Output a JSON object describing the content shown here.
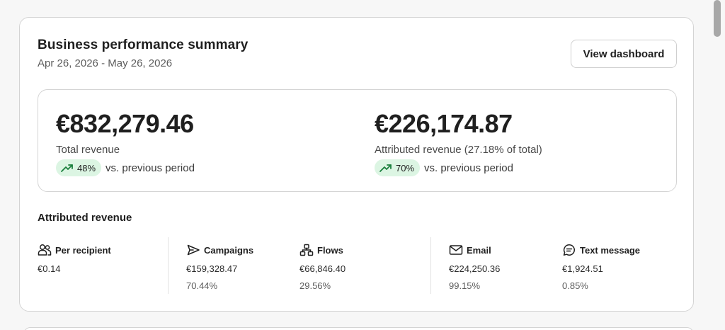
{
  "header": {
    "title": "Business performance summary",
    "date_range": "Apr 26, 2026 - May 26, 2026",
    "view_button": "View dashboard"
  },
  "kpis": [
    {
      "value": "€832,279.46",
      "label": "Total revenue",
      "change": "48%",
      "change_suffix": "vs. previous period"
    },
    {
      "value": "€226,174.87",
      "label": "Attributed revenue (27.18% of total)",
      "change": "70%",
      "change_suffix": "vs. previous period"
    }
  ],
  "attributed": {
    "label": "Attributed revenue",
    "metrics": [
      {
        "name": "Per recipient",
        "icon": "people-icon",
        "value": "€0.14",
        "pct": ""
      },
      {
        "name": "Campaigns",
        "icon": "send-icon",
        "value": "€159,328.47",
        "pct": "70.44%"
      },
      {
        "name": "Flows",
        "icon": "flows-icon",
        "value": "€66,846.40",
        "pct": "29.56%"
      },
      {
        "name": "Email",
        "icon": "email-icon",
        "value": "€224,250.36",
        "pct": "99.15%"
      },
      {
        "name": "Text message",
        "icon": "sms-icon",
        "value": "€1,924.51",
        "pct": "0.85%"
      }
    ]
  },
  "colors": {
    "positive_bg": "#dcf5e3",
    "positive_icon": "#1a7f3c"
  }
}
